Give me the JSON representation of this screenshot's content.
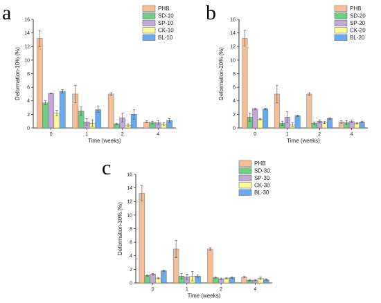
{
  "colors": {
    "PHB": "#f6be96",
    "SD": "#6fcf84",
    "SP": "#c2a9d8",
    "CK": "#fdfa9c",
    "BL": "#6aaaf0",
    "bar_stroke": "#555555",
    "error_bar": "#444444"
  },
  "chart_data": [
    {
      "type": "bar",
      "panel": "a",
      "xlabel": "Time (weeks)",
      "ylabel": "Deformation-10% (%)",
      "categories": [
        "0",
        "1",
        "2",
        "4"
      ],
      "ylim": [
        0,
        16
      ],
      "yticks": [
        0,
        2,
        4,
        6,
        8,
        10,
        12,
        14,
        16
      ],
      "legend_position": "top-right",
      "series": [
        {
          "name": "PHB",
          "color_key": "PHB",
          "values": [
            13.2,
            5.0,
            5.0,
            0.9
          ],
          "errors": [
            1.2,
            1.3,
            0.2,
            0.15
          ]
        },
        {
          "name": "SD-10",
          "color_key": "SD",
          "values": [
            3.7,
            2.5,
            0.6,
            0.8
          ],
          "errors": [
            0.3,
            0.6,
            0.1,
            0.2
          ]
        },
        {
          "name": "SP-10",
          "color_key": "SP",
          "values": [
            5.1,
            0.9,
            1.5,
            0.8
          ],
          "errors": [
            0.05,
            0.5,
            0.6,
            0.3
          ]
        },
        {
          "name": "CK-10",
          "color_key": "CK",
          "values": [
            2.2,
            0.7,
            0.4,
            0.6
          ],
          "errors": [
            0.4,
            0.5,
            0.2,
            0.2
          ]
        },
        {
          "name": "BL-10",
          "color_key": "BL",
          "values": [
            5.4,
            2.7,
            2.0,
            1.1
          ],
          "errors": [
            0.25,
            0.4,
            0.7,
            0.3
          ]
        }
      ]
    },
    {
      "type": "bar",
      "panel": "b",
      "xlabel": "Time (weeks)",
      "ylabel": "Deformation-20% (%)",
      "categories": [
        "0",
        "1",
        "2",
        "4"
      ],
      "ylim": [
        0,
        16
      ],
      "yticks": [
        0,
        2,
        4,
        6,
        8,
        10,
        12,
        14,
        16
      ],
      "legend_position": "top-right",
      "series": [
        {
          "name": "PHB",
          "color_key": "PHB",
          "values": [
            13.2,
            5.0,
            5.0,
            0.9
          ],
          "errors": [
            1.1,
            1.3,
            0.2,
            0.2
          ]
        },
        {
          "name": "SD-20",
          "color_key": "SD",
          "values": [
            1.6,
            0.7,
            0.7,
            0.8
          ],
          "errors": [
            0.6,
            0.3,
            0.2,
            0.3
          ]
        },
        {
          "name": "SP-20",
          "color_key": "SP",
          "values": [
            2.8,
            1.6,
            1.0,
            0.95
          ],
          "errors": [
            0.1,
            0.8,
            0.2,
            0.2
          ]
        },
        {
          "name": "CK-20",
          "color_key": "CK",
          "values": [
            1.3,
            0.5,
            0.8,
            0.7
          ],
          "errors": [
            0.1,
            0.3,
            0.15,
            0.1
          ]
        },
        {
          "name": "BL-20",
          "color_key": "BL",
          "values": [
            2.8,
            1.8,
            1.4,
            0.9
          ],
          "errors": [
            0.1,
            0.1,
            0.1,
            0.1
          ]
        }
      ]
    },
    {
      "type": "bar",
      "panel": "c",
      "xlabel": "Time (weeks)",
      "ylabel": "Deformation-30% (%)",
      "categories": [
        "0",
        "1",
        "2",
        "4"
      ],
      "ylim": [
        0,
        16
      ],
      "yticks": [
        0,
        2,
        4,
        6,
        8,
        10,
        12,
        14,
        16
      ],
      "legend_position": "top-right",
      "series": [
        {
          "name": "PHB",
          "color_key": "PHB",
          "values": [
            13.2,
            5.0,
            5.0,
            0.85
          ],
          "errors": [
            1.1,
            1.3,
            0.2,
            0.1
          ]
        },
        {
          "name": "SD-30",
          "color_key": "SD",
          "values": [
            1.1,
            1.0,
            0.8,
            0.4
          ],
          "errors": [
            0.1,
            0.4,
            0.1,
            0.1
          ]
        },
        {
          "name": "SP-30",
          "color_key": "SP",
          "values": [
            1.3,
            0.9,
            0.6,
            0.4
          ],
          "errors": [
            0.1,
            0.4,
            0.1,
            0.1
          ]
        },
        {
          "name": "CK-30",
          "color_key": "CK",
          "values": [
            0.7,
            1.0,
            0.7,
            0.7
          ],
          "errors": [
            0.1,
            0.7,
            0.1,
            0.2
          ]
        },
        {
          "name": "BL-30",
          "color_key": "BL",
          "values": [
            1.8,
            1.0,
            0.8,
            0.5
          ],
          "errors": [
            0.1,
            0.2,
            0.1,
            0.1
          ]
        }
      ]
    }
  ]
}
